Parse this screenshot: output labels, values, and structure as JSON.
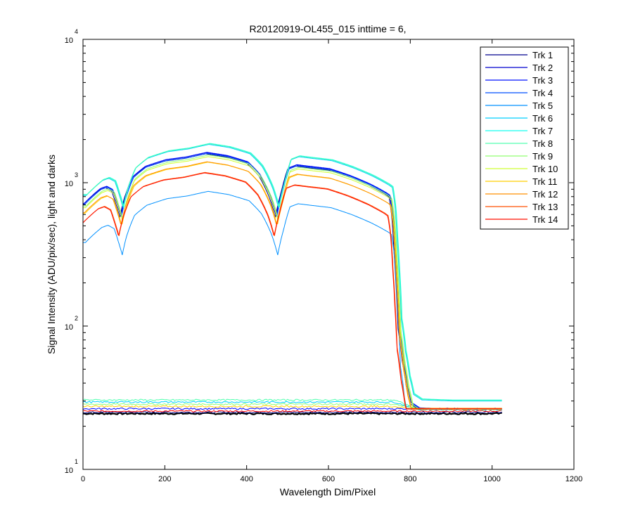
{
  "chart_data": {
    "type": "line",
    "title": "R20120919-OL455_015 inttime = 6,",
    "xlabel": "Wavelength Dim/Pixel",
    "ylabel": "Signal Intensity (ADU/pix/sec), light and darks",
    "xlim": [
      0,
      1200
    ],
    "ylim": [
      10,
      10000
    ],
    "yscale": "log",
    "grid": false,
    "legend_position": "top-right",
    "x_ticks": [
      0,
      200,
      400,
      600,
      800,
      1000,
      1200
    ],
    "y_ticks": [
      {
        "value": 10,
        "base": "10",
        "exp": "1"
      },
      {
        "value": 100,
        "base": "10",
        "exp": "2"
      },
      {
        "value": 1000,
        "base": "10",
        "exp": "3"
      },
      {
        "value": 10000,
        "base": "10",
        "exp": "4"
      }
    ],
    "light_profile": {
      "x": [
        0,
        20,
        40,
        55,
        70,
        80,
        90,
        100,
        120,
        150,
        200,
        250,
        300,
        350,
        400,
        430,
        455,
        470,
        485,
        500,
        520,
        550,
        600,
        650,
        700,
        740,
        748,
        755,
        760,
        765,
        770,
        780,
        790,
        800,
        820,
        870,
        900,
        950,
        1000,
        1024
      ],
      "shape": [
        0.44,
        0.5,
        0.56,
        0.58,
        0.55,
        0.45,
        0.36,
        0.48,
        0.68,
        0.8,
        0.89,
        0.93,
        1.0,
        0.95,
        0.86,
        0.7,
        0.5,
        0.36,
        0.55,
        0.78,
        0.82,
        0.8,
        0.77,
        0.69,
        0.6,
        0.52,
        0.5,
        0.36,
        0.21,
        0.12,
        0.06,
        0.036,
        0.024,
        0.018,
        0.0165,
        0.0163,
        0.0162,
        0.0162,
        0.0162,
        0.0162
      ]
    },
    "series": [
      {
        "name": "Trk 1",
        "color": "#00008f",
        "peak": 1590,
        "drop": 760
      },
      {
        "name": "Trk 2",
        "color": "#0000cf",
        "peak": 1620,
        "drop": 762
      },
      {
        "name": "Trk 3",
        "color": "#0010ff",
        "peak": 1630,
        "drop": 763
      },
      {
        "name": "Trk 4",
        "color": "#0050ff",
        "peak": 1600,
        "drop": 764
      },
      {
        "name": "Trk 5",
        "color": "#0090ff",
        "peak": 870,
        "drop": 766
      },
      {
        "name": "Trk 6",
        "color": "#00cfff",
        "peak": 1850,
        "drop": 768
      },
      {
        "name": "Trk 7",
        "color": "#10ffef",
        "peak": 1880,
        "drop": 770
      },
      {
        "name": "Trk 8",
        "color": "#50ffaf",
        "peak": 1870,
        "drop": 769
      },
      {
        "name": "Trk 9",
        "color": "#90ff70",
        "peak": 1560,
        "drop": 767
      },
      {
        "name": "Trk 10",
        "color": "#cfff30",
        "peak": 1520,
        "drop": 766
      },
      {
        "name": "Trk 11",
        "color": "#ffcf00",
        "peak": 1390,
        "drop": 765
      },
      {
        "name": "Trk 12",
        "color": "#ff9000",
        "peak": 1400,
        "drop": 763
      },
      {
        "name": "Trk 13",
        "color": "#ff5000",
        "peak": 1180,
        "drop": 758
      },
      {
        "name": "Trk 14",
        "color": "#ff1000",
        "peak": 1170,
        "drop": 757
      }
    ],
    "darks": {
      "x_range": [
        0,
        1024
      ],
      "levels": [
        24.5,
        25.0,
        25.5,
        26.5,
        27.5,
        28.5,
        29.5,
        30.5
      ],
      "colors": [
        "#000000",
        "#000080",
        "#ff0000",
        "#0000ff",
        "#ffcf00",
        "#90ff70",
        "#00cfff",
        "#50ffaf"
      ]
    }
  }
}
